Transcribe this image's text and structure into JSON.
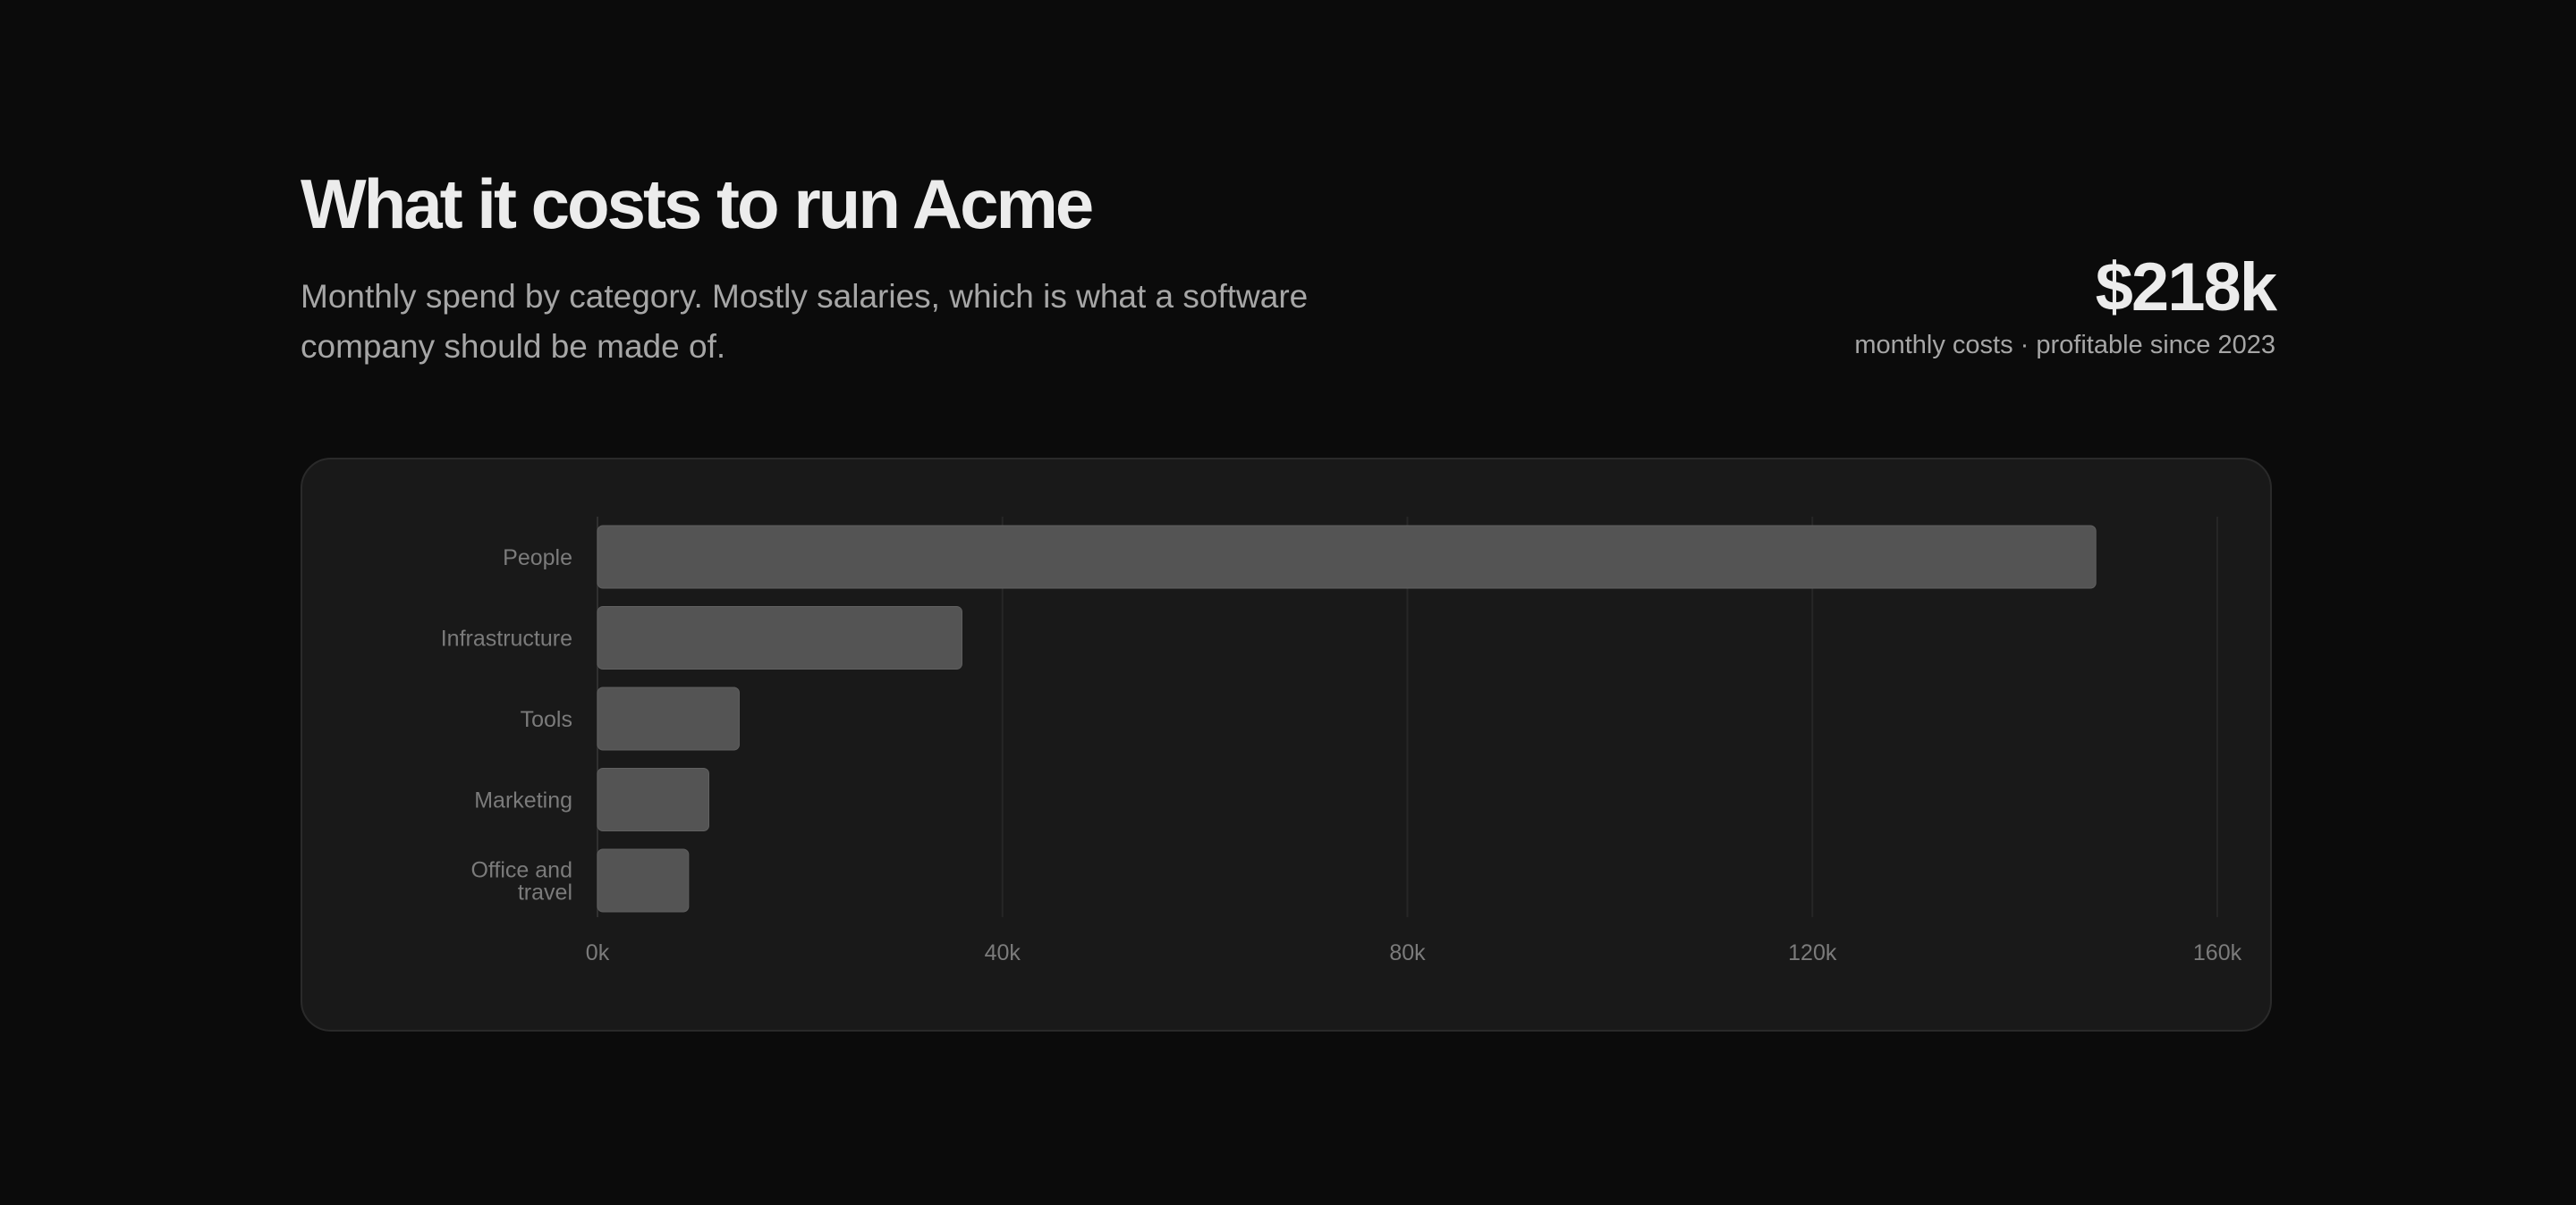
{
  "header": {
    "title": "What it costs to run Acme",
    "subtitle": "Monthly spend by category. Mostly salaries, which is what a software company should be made of."
  },
  "metric": {
    "value": "$218k",
    "caption": "monthly costs · profitable since 2023"
  },
  "colors": {
    "background": "#0b0b0b",
    "card": "#191919",
    "bar": "#545454",
    "grid": "#262626",
    "axis_text": "#7b7b7b"
  },
  "chart_data": {
    "type": "bar",
    "orientation": "horizontal",
    "categories": [
      "People",
      "Infrastructure",
      "Tools",
      "Marketing",
      "Office and travel"
    ],
    "category_lines": [
      [
        "People"
      ],
      [
        "Infrastructure"
      ],
      [
        "Tools"
      ],
      [
        "Marketing"
      ],
      [
        "Office and",
        "travel"
      ]
    ],
    "values": [
      148000,
      36000,
      14000,
      11000,
      9000
    ],
    "xlim": [
      0,
      160000
    ],
    "xticks": [
      0,
      40000,
      80000,
      120000,
      160000
    ],
    "xtick_labels": [
      "0k",
      "40k",
      "80k",
      "120k",
      "160k"
    ],
    "grid": true,
    "title": "",
    "xlabel": "",
    "ylabel": ""
  }
}
